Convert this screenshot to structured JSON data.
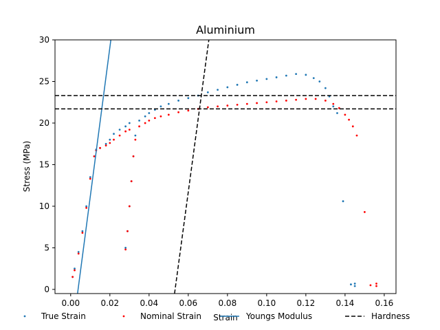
{
  "chart_data": {
    "type": "scatter",
    "title": "Aluminium",
    "xlabel": "Strain",
    "ylabel": "Stress (MPa)",
    "xlim": [
      -0.008,
      0.166
    ],
    "ylim": [
      -0.5,
      30
    ],
    "xticks": [
      0.0,
      0.02,
      0.04,
      0.06,
      0.08,
      0.1,
      0.12,
      0.14,
      0.16
    ],
    "xtick_labels": [
      "0.00",
      "0.02",
      "0.04",
      "0.06",
      "0.08",
      "0.10",
      "0.12",
      "0.14",
      "0.16"
    ],
    "yticks": [
      0,
      5,
      10,
      15,
      20,
      25,
      30
    ],
    "ytick_labels": [
      "0",
      "5",
      "10",
      "15",
      "20",
      "25",
      "30"
    ],
    "grid": false,
    "legend_position": "bottom",
    "series": [
      {
        "name": "True Strain",
        "kind": "scatter",
        "color": "#1f77b4",
        "points": [
          [
            0.001,
            1.5
          ],
          [
            0.002,
            2.5
          ],
          [
            0.004,
            4.5
          ],
          [
            0.006,
            7.0
          ],
          [
            0.008,
            10.0
          ],
          [
            0.01,
            13.5
          ],
          [
            0.012,
            16.0
          ],
          [
            0.013,
            16.8
          ],
          [
            0.015,
            17.0
          ],
          [
            0.018,
            17.5
          ],
          [
            0.02,
            18.0
          ],
          [
            0.022,
            18.7
          ],
          [
            0.025,
            19.2
          ],
          [
            0.028,
            19.6
          ],
          [
            0.03,
            20.0
          ],
          [
            0.028,
            5.0
          ],
          [
            0.029,
            7.0
          ],
          [
            0.03,
            10.0
          ],
          [
            0.031,
            13.0
          ],
          [
            0.032,
            16.0
          ],
          [
            0.033,
            18.5
          ],
          [
            0.035,
            20.3
          ],
          [
            0.038,
            20.8
          ],
          [
            0.04,
            21.2
          ],
          [
            0.043,
            21.6
          ],
          [
            0.046,
            22.0
          ],
          [
            0.05,
            22.3
          ],
          [
            0.055,
            22.7
          ],
          [
            0.06,
            23.0
          ],
          [
            0.065,
            23.3
          ],
          [
            0.07,
            23.7
          ],
          [
            0.075,
            24.0
          ],
          [
            0.08,
            24.3
          ],
          [
            0.085,
            24.6
          ],
          [
            0.09,
            24.9
          ],
          [
            0.095,
            25.1
          ],
          [
            0.1,
            25.3
          ],
          [
            0.105,
            25.5
          ],
          [
            0.11,
            25.7
          ],
          [
            0.115,
            25.9
          ],
          [
            0.12,
            25.8
          ],
          [
            0.124,
            25.4
          ],
          [
            0.127,
            25.0
          ],
          [
            0.13,
            24.2
          ],
          [
            0.132,
            23.2
          ],
          [
            0.134,
            22.0
          ],
          [
            0.136,
            21.2
          ],
          [
            0.139,
            10.6
          ],
          [
            0.143,
            0.6
          ],
          [
            0.145,
            0.4
          ],
          [
            0.145,
            0.7
          ]
        ]
      },
      {
        "name": "Nominal Strain",
        "kind": "scatter",
        "color": "#ff0000",
        "points": [
          [
            0.001,
            1.5
          ],
          [
            0.002,
            2.3
          ],
          [
            0.004,
            4.3
          ],
          [
            0.006,
            6.8
          ],
          [
            0.008,
            9.8
          ],
          [
            0.01,
            13.3
          ],
          [
            0.012,
            16.0
          ],
          [
            0.013,
            16.7
          ],
          [
            0.015,
            17.0
          ],
          [
            0.018,
            17.3
          ],
          [
            0.02,
            17.6
          ],
          [
            0.022,
            18.0
          ],
          [
            0.025,
            18.5
          ],
          [
            0.028,
            19.0
          ],
          [
            0.03,
            19.2
          ],
          [
            0.028,
            4.8
          ],
          [
            0.029,
            7.0
          ],
          [
            0.03,
            10.0
          ],
          [
            0.031,
            13.0
          ],
          [
            0.032,
            16.0
          ],
          [
            0.033,
            18.0
          ],
          [
            0.035,
            19.6
          ],
          [
            0.038,
            20.0
          ],
          [
            0.04,
            20.3
          ],
          [
            0.043,
            20.6
          ],
          [
            0.046,
            20.8
          ],
          [
            0.05,
            21.0
          ],
          [
            0.055,
            21.3
          ],
          [
            0.06,
            21.5
          ],
          [
            0.065,
            21.7
          ],
          [
            0.07,
            21.9
          ],
          [
            0.075,
            22.0
          ],
          [
            0.08,
            22.1
          ],
          [
            0.085,
            22.2
          ],
          [
            0.09,
            22.3
          ],
          [
            0.095,
            22.4
          ],
          [
            0.1,
            22.5
          ],
          [
            0.105,
            22.6
          ],
          [
            0.11,
            22.7
          ],
          [
            0.115,
            22.8
          ],
          [
            0.12,
            22.9
          ],
          [
            0.125,
            22.9
          ],
          [
            0.13,
            22.7
          ],
          [
            0.134,
            22.3
          ],
          [
            0.137,
            21.8
          ],
          [
            0.14,
            21.0
          ],
          [
            0.142,
            20.4
          ],
          [
            0.144,
            19.6
          ],
          [
            0.146,
            18.5
          ],
          [
            0.15,
            9.3
          ],
          [
            0.153,
            0.5
          ],
          [
            0.156,
            0.4
          ],
          [
            0.156,
            0.7
          ]
        ]
      },
      {
        "name": "Youngs Modulus",
        "kind": "line",
        "color": "#1f77b4",
        "points": [
          [
            0.0035,
            -0.5
          ],
          [
            0.0205,
            30
          ]
        ]
      },
      {
        "name": "Hardness",
        "kind": "dashed-line",
        "color": "#000000",
        "points": [
          [
            0.053,
            -0.5
          ],
          [
            0.0705,
            30
          ]
        ],
        "hlines": [
          23.3,
          21.7
        ]
      }
    ]
  }
}
